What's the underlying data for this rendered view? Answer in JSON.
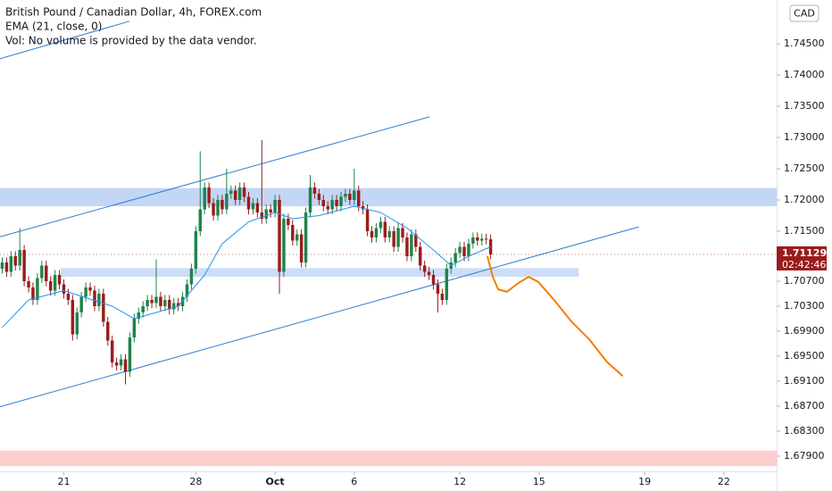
{
  "chart_data": {
    "type": "candlestick",
    "title": "British Pound / Canadian Dollar, 4h, FOREX.com",
    "indicator": "EMA (21, close, 0)",
    "volume_note": "Vol: No volume is provided by the data vendor.",
    "currency": "CAD",
    "countdown": "02:42:46",
    "last_price": {
      "value": 1.71129,
      "label": "1.71129"
    },
    "up_color": "#1e8449",
    "down_color": "#9b1c1c",
    "xlim": [
      -0.5,
      176
    ],
    "ylim": [
      1.67657,
      1.752
    ],
    "xticks": [
      {
        "value": 14,
        "label": "21"
      },
      {
        "value": 44,
        "label": "28"
      },
      {
        "value": 62,
        "label": "Oct"
      },
      {
        "value": 80,
        "label": "6"
      },
      {
        "value": 104,
        "label": "12"
      },
      {
        "value": 122,
        "label": "15"
      },
      {
        "value": 146,
        "label": "19"
      },
      {
        "value": 164,
        "label": "22"
      }
    ],
    "yticks": [
      {
        "value": 1.745,
        "label": "1.74500"
      },
      {
        "value": 1.74,
        "label": "1.74000"
      },
      {
        "value": 1.735,
        "label": "1.73500"
      },
      {
        "value": 1.73,
        "label": "1.73000"
      },
      {
        "value": 1.725,
        "label": "1.72500"
      },
      {
        "value": 1.72,
        "label": "1.72000"
      },
      {
        "value": 1.715,
        "label": "1.71500"
      },
      {
        "value": 1.707,
        "label": "1.70700"
      },
      {
        "value": 1.703,
        "label": "1.70300"
      },
      {
        "value": 1.699,
        "label": "1.69900"
      },
      {
        "value": 1.695,
        "label": "1.69500"
      },
      {
        "value": 1.691,
        "label": "1.69100"
      },
      {
        "value": 1.687,
        "label": "1.68700"
      },
      {
        "value": 1.683,
        "label": "1.68300"
      },
      {
        "value": 1.679,
        "label": "1.67900"
      }
    ],
    "open": [
      1.709,
      1.71,
      1.7085,
      1.711,
      1.7095,
      1.712,
      1.707,
      1.706,
      1.704,
      1.7075,
      1.7095,
      1.707,
      1.7055,
      1.708,
      1.7065,
      1.705,
      1.704,
      1.6985,
      1.702,
      1.7045,
      1.706,
      1.7055,
      1.703,
      1.705,
      1.7005,
      1.6975,
      1.694,
      1.6935,
      1.6945,
      1.6925,
      1.698,
      1.701,
      1.702,
      1.703,
      1.704,
      1.7035,
      1.7045,
      1.703,
      1.704,
      1.7025,
      1.7035,
      1.703,
      1.7045,
      1.7065,
      1.709,
      1.715,
      1.7185,
      1.722,
      1.7195,
      1.7175,
      1.72,
      1.7185,
      1.721,
      1.7215,
      1.72,
      1.722,
      1.7205,
      1.7185,
      1.7195,
      1.718,
      1.717,
      1.7185,
      1.718,
      1.72,
      1.7085,
      1.717,
      1.716,
      1.7135,
      1.7145,
      1.71,
      1.718,
      1.722,
      1.721,
      1.72,
      1.719,
      1.7185,
      1.72,
      1.719,
      1.7205,
      1.721,
      1.72,
      1.7215,
      1.719,
      1.7185,
      1.715,
      1.714,
      1.7155,
      1.7165,
      1.714,
      1.715,
      1.7125,
      1.7155,
      1.714,
      1.711,
      1.7145,
      1.7125,
      1.7095,
      1.7085,
      1.708,
      1.7065,
      1.705,
      1.704,
      1.709,
      1.71,
      1.7115,
      1.7125,
      1.711,
      1.713,
      1.714,
      1.7135,
      1.7138,
      1.7137
    ],
    "high": [
      1.7108,
      1.7108,
      1.7118,
      1.7118,
      1.7155,
      1.7128,
      1.7078,
      1.7068,
      1.7083,
      1.7103,
      1.7103,
      1.7078,
      1.7088,
      1.7088,
      1.7073,
      1.7058,
      1.7048,
      1.7028,
      1.7053,
      1.7068,
      1.7068,
      1.7063,
      1.7058,
      1.7058,
      1.7013,
      1.6983,
      1.6948,
      1.6953,
      1.6953,
      1.6988,
      1.7018,
      1.7028,
      1.7038,
      1.7048,
      1.7048,
      1.7105,
      1.7053,
      1.7048,
      1.7048,
      1.7043,
      1.7043,
      1.7053,
      1.7073,
      1.7098,
      1.7158,
      1.7278,
      1.7228,
      1.7228,
      1.7203,
      1.7208,
      1.7208,
      1.725,
      1.7223,
      1.7223,
      1.7228,
      1.7228,
      1.7213,
      1.7203,
      1.7203,
      1.7296,
      1.7193,
      1.7193,
      1.7208,
      1.7208,
      1.7178,
      1.7178,
      1.7168,
      1.7153,
      1.7153,
      1.7188,
      1.724,
      1.7228,
      1.7218,
      1.7208,
      1.7198,
      1.7208,
      1.7208,
      1.7213,
      1.7218,
      1.7218,
      1.725,
      1.7223,
      1.7198,
      1.7193,
      1.7158,
      1.7163,
      1.7173,
      1.7173,
      1.7158,
      1.7158,
      1.7163,
      1.7163,
      1.7148,
      1.7153,
      1.7153,
      1.7133,
      1.7103,
      1.7093,
      1.7088,
      1.7073,
      1.7058,
      1.7098,
      1.7108,
      1.7123,
      1.7133,
      1.7133,
      1.7138,
      1.7148,
      1.7148,
      1.7146,
      1.7146,
      1.7145
    ],
    "low": [
      1.7082,
      1.7077,
      1.7077,
      1.7087,
      1.7087,
      1.7062,
      1.7052,
      1.7032,
      1.7032,
      1.7067,
      1.7062,
      1.7047,
      1.7047,
      1.7057,
      1.7042,
      1.7032,
      1.6975,
      1.6977,
      1.7012,
      1.7037,
      1.7047,
      1.7022,
      1.7022,
      1.6997,
      1.6967,
      1.6932,
      1.6927,
      1.6927,
      1.6905,
      1.6917,
      1.6972,
      1.7002,
      1.7012,
      1.7022,
      1.7027,
      1.7027,
      1.7022,
      1.7022,
      1.7017,
      1.7017,
      1.7022,
      1.7022,
      1.7037,
      1.7057,
      1.7082,
      1.7142,
      1.7177,
      1.7187,
      1.7167,
      1.7167,
      1.7177,
      1.7177,
      1.7202,
      1.7192,
      1.7192,
      1.7197,
      1.7177,
      1.7177,
      1.7172,
      1.7162,
      1.7162,
      1.7172,
      1.7172,
      1.705,
      1.7077,
      1.7152,
      1.7127,
      1.7127,
      1.7092,
      1.7092,
      1.7172,
      1.7202,
      1.7192,
      1.7182,
      1.7177,
      1.7177,
      1.7182,
      1.7182,
      1.7197,
      1.7192,
      1.7192,
      1.7182,
      1.7177,
      1.7142,
      1.7132,
      1.7132,
      1.7147,
      1.7132,
      1.7132,
      1.7117,
      1.7117,
      1.7132,
      1.7102,
      1.7102,
      1.7117,
      1.7087,
      1.7077,
      1.7072,
      1.7057,
      1.702,
      1.7032,
      1.7032,
      1.7082,
      1.7092,
      1.7107,
      1.7102,
      1.7102,
      1.7122,
      1.7127,
      1.7127,
      1.7129,
      1.7105
    ],
    "close": [
      1.71,
      1.7085,
      1.711,
      1.7095,
      1.712,
      1.707,
      1.706,
      1.704,
      1.7075,
      1.7095,
      1.707,
      1.7055,
      1.708,
      1.7065,
      1.705,
      1.704,
      1.6985,
      1.702,
      1.7045,
      1.706,
      1.7055,
      1.703,
      1.705,
      1.7005,
      1.6975,
      1.694,
      1.6935,
      1.6945,
      1.6925,
      1.698,
      1.701,
      1.702,
      1.703,
      1.704,
      1.7035,
      1.7045,
      1.703,
      1.704,
      1.7025,
      1.7035,
      1.703,
      1.7045,
      1.7065,
      1.709,
      1.715,
      1.7185,
      1.722,
      1.7195,
      1.7175,
      1.72,
      1.7185,
      1.721,
      1.7215,
      1.72,
      1.722,
      1.7205,
      1.7185,
      1.7195,
      1.718,
      1.717,
      1.7185,
      1.718,
      1.72,
      1.7085,
      1.717,
      1.716,
      1.7135,
      1.7145,
      1.71,
      1.718,
      1.722,
      1.721,
      1.72,
      1.719,
      1.7185,
      1.72,
      1.719,
      1.7205,
      1.721,
      1.72,
      1.7215,
      1.719,
      1.7185,
      1.715,
      1.714,
      1.7155,
      1.7165,
      1.714,
      1.715,
      1.7125,
      1.7155,
      1.714,
      1.711,
      1.7145,
      1.7125,
      1.7095,
      1.7085,
      1.708,
      1.7065,
      1.705,
      1.704,
      1.709,
      1.71,
      1.7115,
      1.7125,
      1.711,
      1.713,
      1.714,
      1.7135,
      1.7138,
      1.7137,
      1.71129
    ],
    "ema": {
      "color": "#2196f3",
      "x": [
        0,
        6,
        14,
        25,
        30,
        40,
        46,
        50,
        56,
        62,
        66,
        72,
        80,
        86,
        92,
        98,
        102,
        106,
        111
      ],
      "values": [
        1.6996,
        1.704,
        1.7055,
        1.703,
        1.701,
        1.703,
        1.708,
        1.713,
        1.7165,
        1.718,
        1.717,
        1.7175,
        1.719,
        1.718,
        1.7155,
        1.712,
        1.7095,
        1.711,
        1.7125
      ]
    },
    "zones": [
      {
        "color": "#b9cff5",
        "x": [
          -0.5,
          176
        ],
        "y": [
          1.719,
          1.7219
        ]
      },
      {
        "color": "#c5d7f6",
        "x": [
          13.3,
          131
        ],
        "y": [
          1.7077,
          1.7091
        ]
      },
      {
        "color": "#fbc4c4",
        "x": [
          -0.5,
          176
        ],
        "y": [
          1.6774,
          1.6799
        ]
      }
    ],
    "trendlines": [
      {
        "color": "#2f7fd0",
        "x": [
          -0.5,
          97.1
        ],
        "y": [
          1.7141,
          1.7333
        ]
      },
      {
        "color": "#2f7fd0",
        "x": [
          -0.5,
          144.7
        ],
        "y": [
          1.6869,
          1.7157
        ]
      },
      {
        "color": "#2f7fd0",
        "x": [
          -0.5,
          28.9
        ],
        "y": [
          1.7426,
          1.7486
        ]
      }
    ],
    "projection": {
      "color": "#f57c00",
      "x": [
        110.3,
        111.5,
        112.7,
        114.7,
        117.1,
        119.6,
        121.8,
        125.3,
        129.3,
        133.4,
        137.4,
        140.9
      ],
      "y": [
        1.7109,
        1.7077,
        1.7057,
        1.7053,
        1.7066,
        1.7077,
        1.7069,
        1.7041,
        1.7006,
        1.6977,
        1.6941,
        1.6919
      ]
    }
  }
}
